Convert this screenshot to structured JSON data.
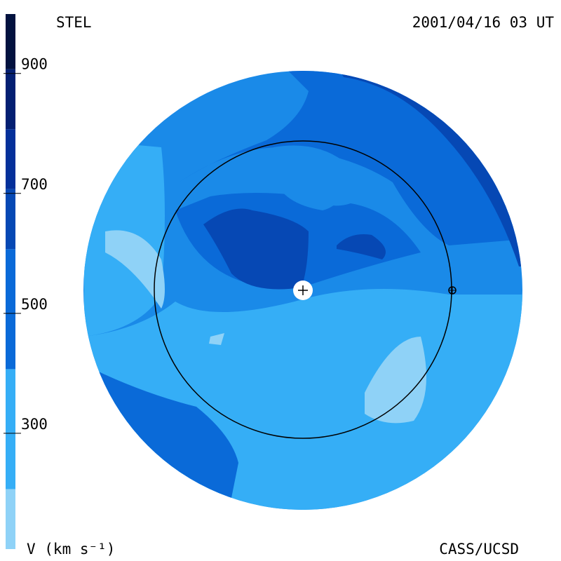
{
  "header": {
    "left": "STEL",
    "right": "2001/04/16 03 UT"
  },
  "footer": {
    "left": "V (km s⁻¹)",
    "right": "CASS/UCSD"
  },
  "colorbar": {
    "lim": [
      100,
      992
    ],
    "ticks": [
      300,
      500,
      700,
      900
    ],
    "bands": [
      {
        "from": 100,
        "to": 200,
        "color": "#8fd2f7"
      },
      {
        "from": 200,
        "to": 400,
        "color": "#35aef6"
      },
      {
        "from": 400,
        "to": 600,
        "color": "#0a6ad8"
      },
      {
        "from": 600,
        "to": 700,
        "color": "#0648b4"
      },
      {
        "from": 700,
        "to": 800,
        "color": "#04309a"
      },
      {
        "from": 800,
        "to": 900,
        "color": "#031f72"
      },
      {
        "from": 900,
        "to": 992,
        "color": "#02123f"
      }
    ]
  }
}
